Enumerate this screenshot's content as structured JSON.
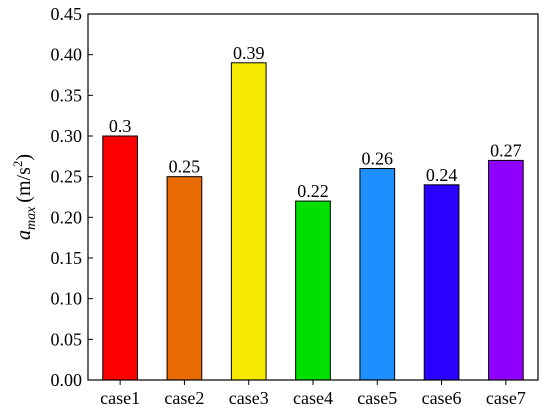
{
  "chart_data": {
    "type": "bar",
    "categories": [
      "case1",
      "case2",
      "case3",
      "case4",
      "case5",
      "case6",
      "case7"
    ],
    "values": [
      0.3,
      0.25,
      0.39,
      0.22,
      0.26,
      0.24,
      0.27
    ],
    "value_labels": [
      "0.3",
      "0.25",
      "0.39",
      "0.22",
      "0.26",
      "0.24",
      "0.27"
    ],
    "colors": [
      "#ff0000",
      "#e86a00",
      "#f5ea00",
      "#00e000",
      "#1e8fff",
      "#2a00ff",
      "#9000ff"
    ],
    "ylabel_main": "a",
    "ylabel_sub": "max",
    "ylabel_units_pre": "(m/s",
    "ylabel_units_sup": "2",
    "ylabel_units_post": ")",
    "ylim": [
      0,
      0.45
    ],
    "yticks": [
      0.0,
      0.05,
      0.1,
      0.15,
      0.2,
      0.25,
      0.3,
      0.35,
      0.4,
      0.45
    ],
    "ytick_labels": [
      "0.00",
      "0.05",
      "0.10",
      "0.15",
      "0.20",
      "0.25",
      "0.30",
      "0.35",
      "0.40",
      "0.45"
    ],
    "grid": false,
    "legend": "none"
  }
}
